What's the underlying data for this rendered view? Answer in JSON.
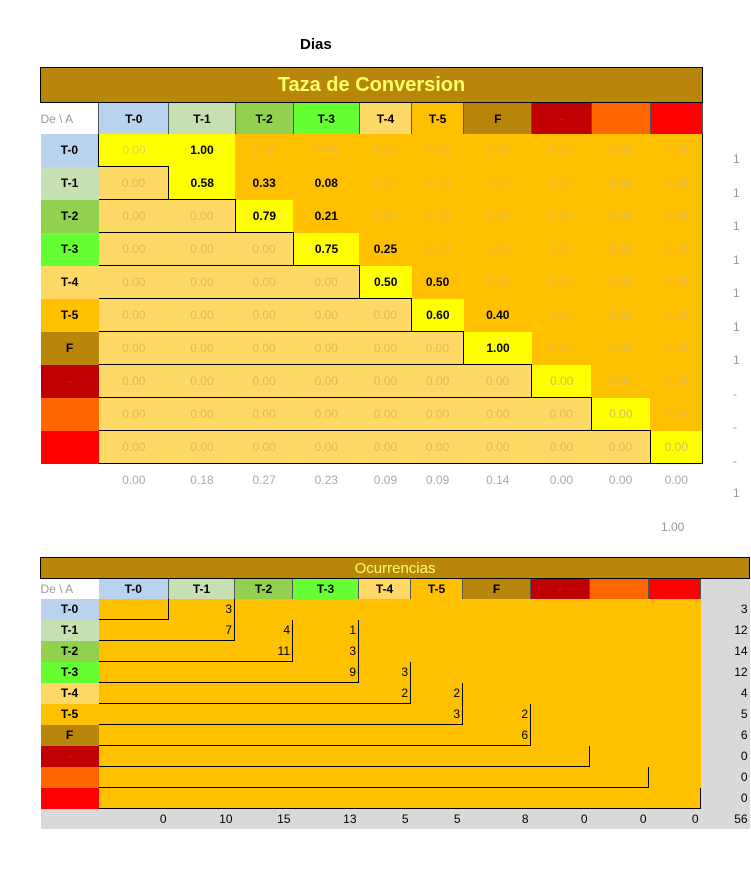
{
  "title": "Dias",
  "conversion": {
    "banner": "Taza de Conversion",
    "corner": "De \\ A",
    "headers": [
      "T-0",
      "T-1",
      "T-2",
      "T-3",
      "T-4",
      "T-5",
      "F",
      "-",
      "",
      ""
    ],
    "header_colors": [
      "#B9D3EE",
      "#C6E0B4",
      "#92D050",
      "#66FF33",
      "#FFD966",
      "#FFC000",
      "#B8860B",
      "#C00000",
      "#FF6600",
      "#FF0000"
    ],
    "header_text_colors": [
      "#000",
      "#000",
      "#000",
      "#000",
      "#000",
      "#000",
      "#000",
      "#FF0000",
      "#000",
      "#000"
    ],
    "row_labels": [
      "T-0",
      "T-1",
      "T-2",
      "T-3",
      "T-4",
      "T-5",
      "F",
      "-",
      "",
      ""
    ],
    "rows": [
      [
        "0.00",
        "1.00",
        "0.00",
        "0.00",
        "0.00",
        "0.00",
        "0.00",
        "0.00",
        "0.00",
        "0.00"
      ],
      [
        "0.00",
        "0.58",
        "0.33",
        "0.08",
        "0.00",
        "0.00",
        "0.00",
        "0.00",
        "0.00",
        "0.00"
      ],
      [
        "0.00",
        "0.00",
        "0.79",
        "0.21",
        "0.00",
        "0.00",
        "0.00",
        "0.00",
        "0.00",
        "0.00"
      ],
      [
        "0.00",
        "0.00",
        "0.00",
        "0.75",
        "0.25",
        "0.00",
        "0.00",
        "0.00",
        "0.00",
        "0.00"
      ],
      [
        "0.00",
        "0.00",
        "0.00",
        "0.00",
        "0.50",
        "0.50",
        "0.00",
        "0.00",
        "0.00",
        "0.00"
      ],
      [
        "0.00",
        "0.00",
        "0.00",
        "0.00",
        "0.00",
        "0.60",
        "0.40",
        "0.00",
        "0.00",
        "0.00"
      ],
      [
        "0.00",
        "0.00",
        "0.00",
        "0.00",
        "0.00",
        "0.00",
        "1.00",
        "0.00",
        "0.00",
        "0.00"
      ],
      [
        "0.00",
        "0.00",
        "0.00",
        "0.00",
        "0.00",
        "0.00",
        "0.00",
        "0.00",
        "0.00",
        "0.00"
      ],
      [
        "0.00",
        "0.00",
        "0.00",
        "0.00",
        "0.00",
        "0.00",
        "0.00",
        "0.00",
        "0.00",
        "0.00"
      ],
      [
        "0.00",
        "0.00",
        "0.00",
        "0.00",
        "0.00",
        "0.00",
        "0.00",
        "0.00",
        "0.00",
        "0.00"
      ]
    ],
    "row_sums": [
      "1",
      "1",
      "1",
      "1",
      "1",
      "1",
      "1",
      "-",
      "-",
      "-"
    ],
    "col_totals": [
      "0.00",
      "0.18",
      "0.27",
      "0.23",
      "0.09",
      "0.09",
      "0.14",
      "0.00",
      "0.00",
      "0.00"
    ],
    "col_totals_sum": "1",
    "grand_total": "1.00"
  },
  "occurrences": {
    "banner": "Ocurrencias",
    "corner": "De \\ A",
    "headers": [
      "T-0",
      "T-1",
      "T-2",
      "T-3",
      "T-4",
      "T-5",
      "F",
      "-",
      "",
      ""
    ],
    "row_labels": [
      "T-0",
      "T-1",
      "T-2",
      "T-3",
      "T-4",
      "T-5",
      "F",
      "-",
      "",
      ""
    ],
    "rows": [
      [
        "",
        "3",
        "",
        "",
        "",
        "",
        "",
        "",
        "",
        ""
      ],
      [
        "",
        "7",
        "4",
        "1",
        "",
        "",
        "",
        "",
        "",
        ""
      ],
      [
        "",
        "",
        "11",
        "3",
        "",
        "",
        "",
        "",
        "",
        ""
      ],
      [
        "",
        "",
        "",
        "9",
        "3",
        "",
        "",
        "",
        "",
        ""
      ],
      [
        "",
        "",
        "",
        "",
        "2",
        "2",
        "",
        "",
        "",
        ""
      ],
      [
        "",
        "",
        "",
        "",
        "",
        "3",
        "2",
        "",
        "",
        ""
      ],
      [
        "",
        "",
        "",
        "",
        "",
        "",
        "6",
        "",
        "",
        ""
      ],
      [
        "",
        "",
        "",
        "",
        "",
        "",
        "",
        "",
        "",
        ""
      ],
      [
        "",
        "",
        "",
        "",
        "",
        "",
        "",
        "",
        "",
        ""
      ],
      [
        "",
        "",
        "",
        "",
        "",
        "",
        "",
        "",
        "",
        ""
      ]
    ],
    "row_totals": [
      "3",
      "12",
      "14",
      "12",
      "4",
      "5",
      "6",
      "0",
      "0",
      "0"
    ],
    "col_totals": [
      "0",
      "10",
      "15",
      "13",
      "5",
      "5",
      "8",
      "0",
      "0",
      "0"
    ],
    "grand_total": "56"
  }
}
